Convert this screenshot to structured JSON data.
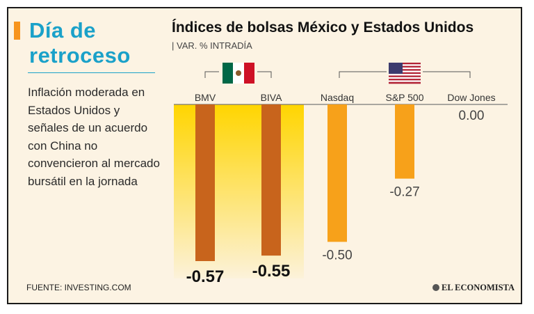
{
  "headline": {
    "line1": "Día de",
    "line2": "retroceso"
  },
  "lede": "Inflación moderada en Estados Unidos y señales de un acuerdo con China no convencieron al mercado bursátil en la jornada",
  "source": "FUENTE: INVESTING.COM",
  "brand": "EL ECONOMISTA",
  "colors": {
    "accent": "#1aa1c9",
    "bar_mx": "#c8641c",
    "bar_us": "#f7a11a",
    "highlight": "#ffd500",
    "background": "#fcf3e3"
  },
  "groups": [
    {
      "country": "México",
      "flag_icon": "mexico-flag-icon"
    },
    {
      "country": "Estados Unidos",
      "flag_icon": "usa-flag-icon"
    }
  ],
  "chart_data": {
    "type": "bar",
    "title": "Índices de bolsas México y Estados Unidos",
    "subtitle": "| VAR. % INTRADÍA",
    "xlabel": "",
    "ylabel": "",
    "categories": [
      "BMV",
      "BIVA",
      "Nasdaq",
      "S&P 500",
      "Dow Jones"
    ],
    "values": [
      -0.57,
      -0.55,
      -0.5,
      -0.27,
      0.0
    ],
    "value_labels": [
      "-0.57",
      "-0.55",
      "-0.50",
      "-0.27",
      "0.00"
    ],
    "group": [
      "México",
      "México",
      "Estados Unidos",
      "Estados Unidos",
      "Estados Unidos"
    ],
    "highlighted_group": "México",
    "ylim": [
      -0.6,
      0
    ]
  }
}
